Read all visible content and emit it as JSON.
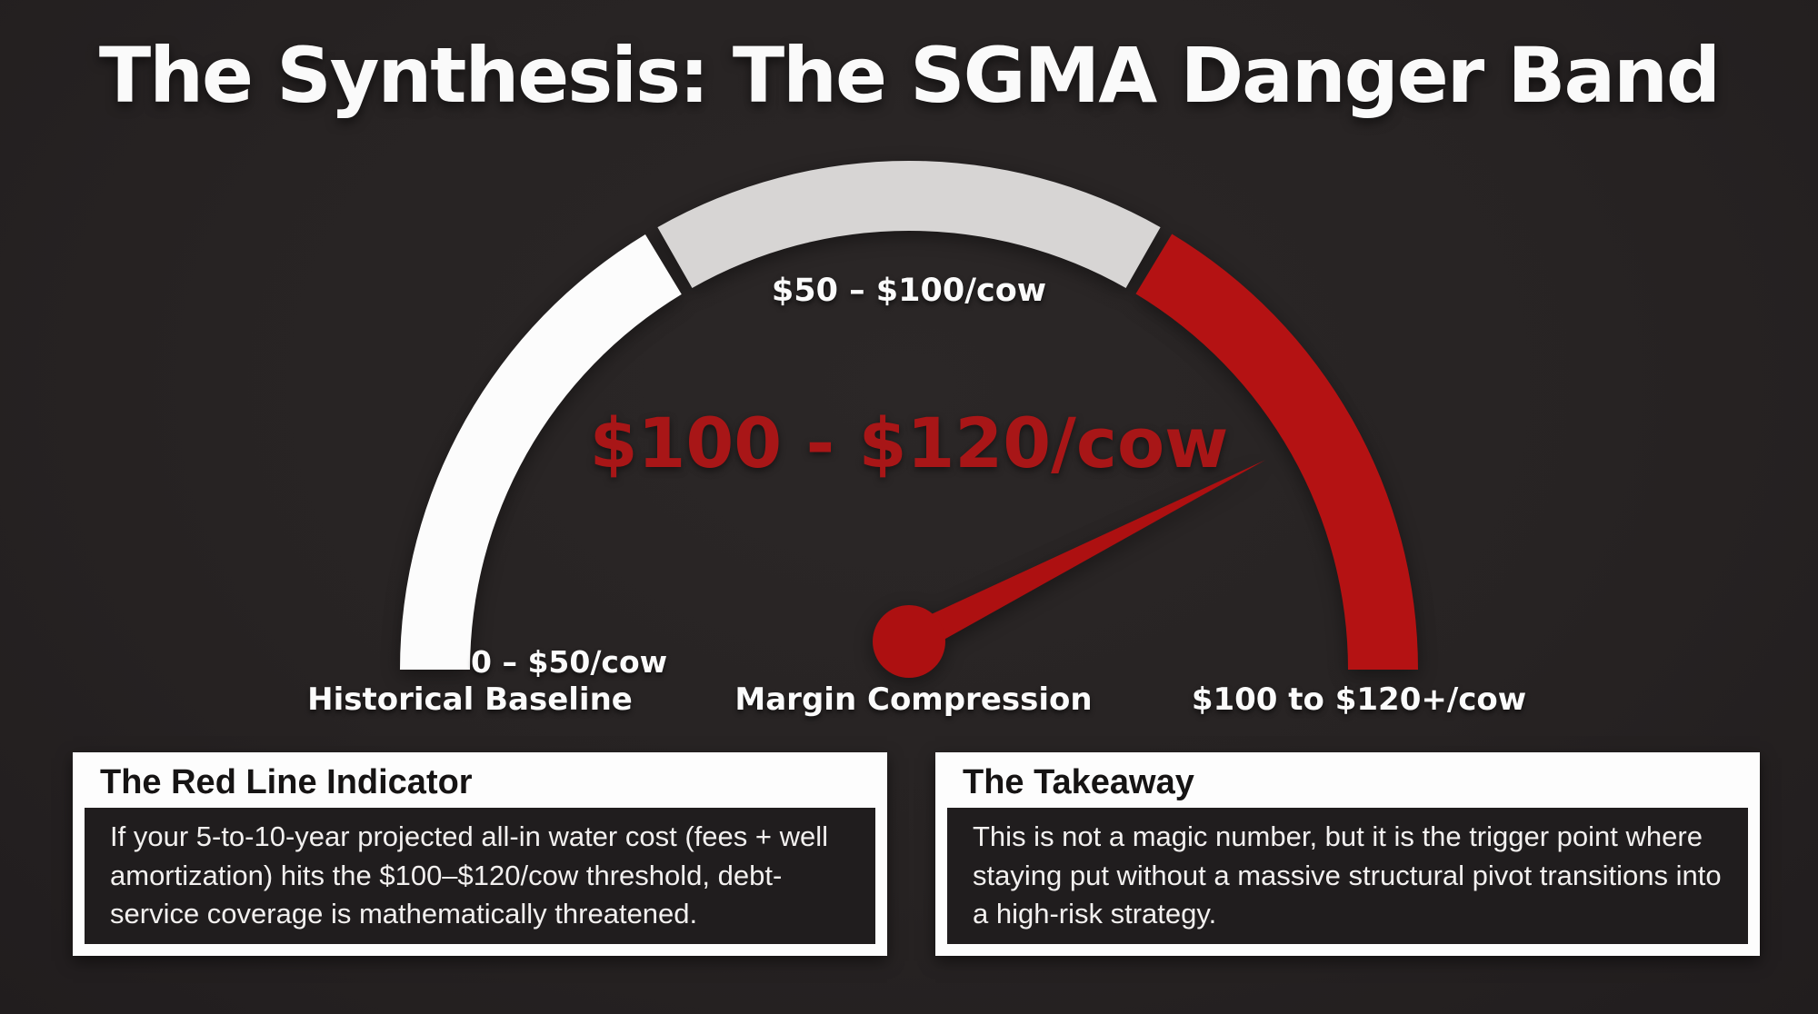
{
  "title": "The Synthesis: The SGMA Danger Band",
  "colors": {
    "background": "#272323",
    "baseline_segment": "#fcfcfc",
    "compression_segment": "#d7d5d4",
    "danger_segment": "#b41213",
    "needle": "#ad1011",
    "danger_text": "#a81617",
    "label_text": "#fbfbfb"
  },
  "chart_data": {
    "type": "gauge",
    "title": "The Synthesis: The SGMA Danger Band",
    "description": "Semicircular danger-band gauge of projected all-in water cost per cow, needle pointing into the red band",
    "units": "$/cow",
    "gauge": {
      "center": [
        1000,
        737
      ],
      "r_inner": 483,
      "r_outer": 560,
      "start_angle_deg": 180,
      "end_angle_deg": 0
    },
    "segments": [
      {
        "range_label": "0 – $50/cow",
        "name": "Historical Baseline",
        "value_range": [
          0,
          50
        ],
        "color": "#fcfcfc",
        "angles": [
          180,
          121.2
        ]
      },
      {
        "range_label": "$50 – $100/cow",
        "name": "Margin Compression",
        "value_range": [
          50,
          100
        ],
        "color": "#d7d5d4",
        "angles": [
          119.6,
          60.4
        ]
      },
      {
        "range_label": "$100 to $120+/cow",
        "name": "SGMA Danger Band",
        "value_range": [
          100,
          120
        ],
        "color": "#b41213",
        "angles": [
          58.9,
          0
        ]
      }
    ],
    "needle": {
      "value_label": "$100 - $120/cow",
      "pivot": [
        1000,
        706
      ],
      "angle_deg": 27,
      "length": 440,
      "base_half_width": 17,
      "hub_radius": 40,
      "color": "#ad1011"
    },
    "legend_position": "none",
    "grid": false
  },
  "callouts": [
    {
      "title": "The Red Line Indicator",
      "body": "If your 5-to-10-year projected all-in water cost (fees + well amortization) hits the $100–$120/cow threshold, debt-service coverage is mathematically threatened."
    },
    {
      "title": "The Takeaway",
      "body": "This is not a magic number, but it is the trigger point where staying put without a massive structural pivot transitions into a high-risk strategy."
    }
  ]
}
